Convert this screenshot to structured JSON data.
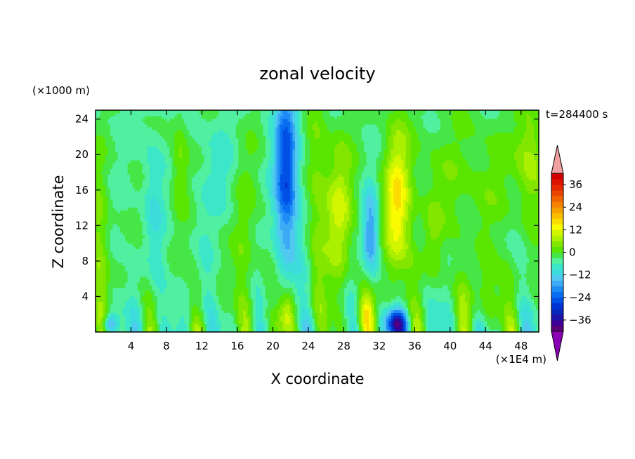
{
  "chart_data": {
    "type": "heatmap",
    "title": "zonal velocity",
    "xlabel": "X coordinate",
    "ylabel": "Z coordinate",
    "x_units": "(×1E4 m)",
    "y_units": "(×1000 m)",
    "time_label": "t=284400 s",
    "xlim": [
      0,
      50
    ],
    "ylim": [
      0,
      25
    ],
    "x_ticks": [
      4,
      8,
      12,
      16,
      20,
      24,
      28,
      32,
      36,
      40,
      44,
      48
    ],
    "y_ticks": [
      4,
      8,
      12,
      16,
      20,
      24
    ],
    "colorbar": {
      "levels": [
        -42,
        -39,
        -36,
        -33,
        -30,
        -27,
        -24,
        -21,
        -18,
        -15,
        -12,
        -9,
        -6,
        -3,
        0,
        3,
        6,
        9,
        12,
        15,
        18,
        21,
        24,
        27,
        30,
        33,
        36,
        39,
        42
      ],
      "colors": [
        "#5a0078",
        "#3c0096",
        "#1e14aa",
        "#0a28be",
        "#0032d2",
        "#0050e6",
        "#0a6ef0",
        "#1e8cf5",
        "#3caaf5",
        "#50c8f0",
        "#3cdcdc",
        "#3ce6c8",
        "#50f0a0",
        "#46e646",
        "#5ae600",
        "#82e600",
        "#aaf000",
        "#d2f500",
        "#fafa00",
        "#fadc00",
        "#fabe00",
        "#f5a000",
        "#f58200",
        "#f06400",
        "#eb4600",
        "#e62800",
        "#dc1400",
        "#d20000"
      ],
      "under_color": "#8c00b4",
      "over_color": "#f0a0a0",
      "tick_values": [
        36,
        24,
        12,
        0,
        -12,
        -24,
        -36
      ]
    },
    "field": {
      "base": -3.5,
      "features": [
        {
          "x": 21.5,
          "z": 18,
          "w": 1.3,
          "h": 10,
          "amp": -24
        },
        {
          "x": 21.5,
          "z": 2,
          "w": 1.0,
          "h": 2.5,
          "amp": 14
        },
        {
          "x": 27.5,
          "z": 13,
          "w": 1.6,
          "h": 9,
          "amp": 13
        },
        {
          "x": 31,
          "z": 11,
          "w": 0.9,
          "h": 5,
          "amp": -16
        },
        {
          "x": 30.5,
          "z": 2,
          "w": 1.0,
          "h": 2.5,
          "amp": 14
        },
        {
          "x": 34,
          "z": 14,
          "w": 1.5,
          "h": 9,
          "amp": 17
        },
        {
          "x": 34,
          "z": 1,
          "w": 1.2,
          "h": 1.6,
          "amp": -32
        },
        {
          "x": 42,
          "z": 17,
          "w": 8,
          "h": 8,
          "amp": 5
        },
        {
          "x": 49,
          "z": 20,
          "w": 1.5,
          "h": 6,
          "amp": 9
        },
        {
          "x": 9.5,
          "z": 19,
          "w": 1.0,
          "h": 6,
          "amp": 7
        },
        {
          "x": 6.5,
          "z": 15,
          "w": 1.2,
          "h": 8,
          "amp": -5
        },
        {
          "x": 14,
          "z": 18,
          "w": 2,
          "h": 6,
          "amp": -4
        },
        {
          "x": 1.5,
          "z": 0.8,
          "w": 0.8,
          "h": 1.2,
          "amp": -18
        },
        {
          "x": 0.5,
          "z": 10,
          "w": 1.2,
          "h": 10,
          "amp": 8
        },
        {
          "x": 17,
          "z": 10,
          "w": 1.5,
          "h": 12,
          "amp": 6
        },
        {
          "x": 25,
          "z": 16,
          "w": 1.2,
          "h": 12,
          "amp": 7
        },
        {
          "x": 38,
          "z": 10,
          "w": 1.2,
          "h": 5,
          "amp": 5
        },
        {
          "x": 44,
          "z": 4,
          "w": 3,
          "h": 4,
          "amp": 6
        }
      ],
      "waves": [
        {
          "kx": 1.25,
          "amp": 7.5,
          "zdecay": 5
        },
        {
          "kx": 2.3,
          "amp": 5,
          "zdecay": 4
        }
      ]
    }
  }
}
